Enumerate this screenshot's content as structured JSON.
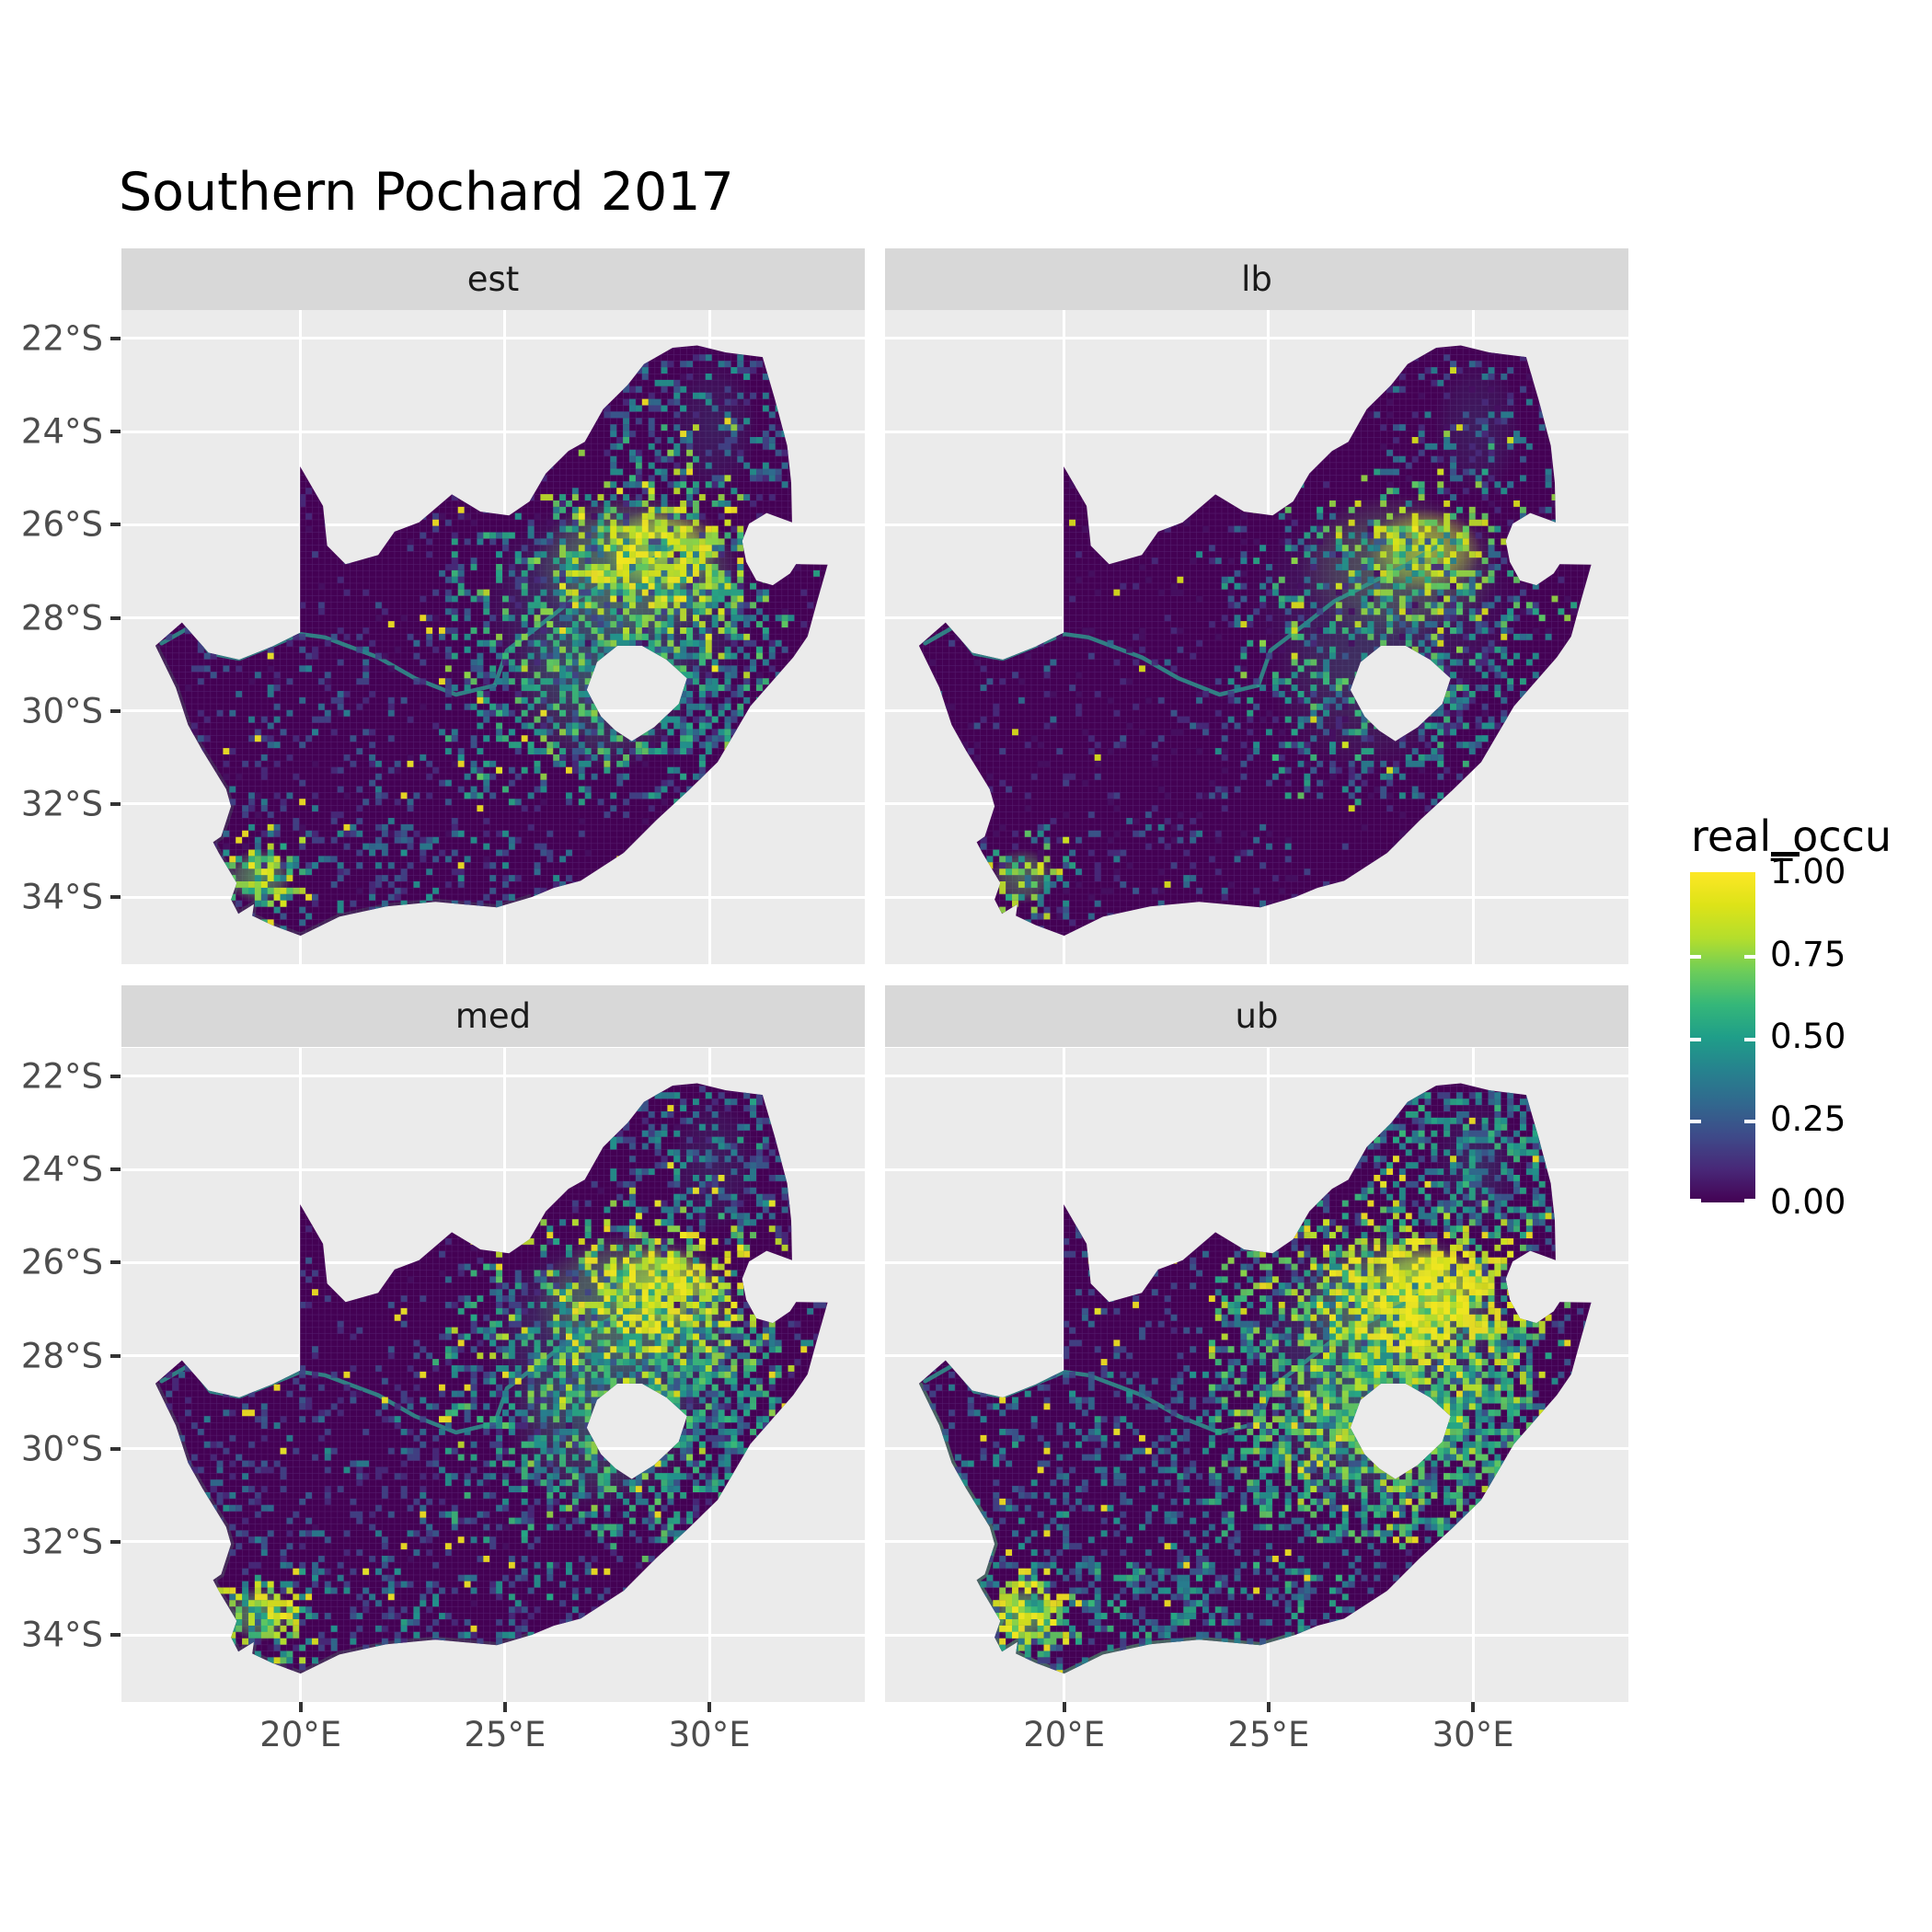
{
  "title": "Southern Pochard 2017",
  "chart_data": {
    "type": "heatmap",
    "title": "Southern Pochard 2017",
    "subtitle": "",
    "facets": [
      {
        "label": "est",
        "density": 1.0,
        "vshift": 0.0,
        "glow": 0.18,
        "hotspot_opacity": 1.0,
        "seed": 11
      },
      {
        "label": "lb",
        "density": 0.6,
        "vshift": -0.07,
        "glow": 0.0,
        "hotspot_opacity": 0.78,
        "seed": 22
      },
      {
        "label": "med",
        "density": 1.1,
        "vshift": 0.02,
        "glow": 0.22,
        "hotspot_opacity": 1.05,
        "seed": 33
      },
      {
        "label": "ub",
        "density": 1.55,
        "vshift": 0.1,
        "glow": 0.5,
        "hotspot_opacity": 1.2,
        "seed": 44
      }
    ],
    "x_axis": {
      "labels": [
        "20°E",
        "25°E",
        "30°E"
      ],
      "values": [
        20,
        25,
        30
      ]
    },
    "y_axis": {
      "labels": [
        "22°S",
        "24°S",
        "26°S",
        "28°S",
        "30°S",
        "32°S",
        "34°S"
      ],
      "values": [
        -22,
        -24,
        -26,
        -28,
        -30,
        -32,
        -34
      ]
    },
    "lon_range": [
      15.62,
      33.8
    ],
    "lat_range": [
      -35.44,
      -21.39
    ],
    "cell_size_deg": 0.155,
    "grid": "on",
    "legend": {
      "title": "real_occu",
      "labels": [
        "1.00",
        "0.75",
        "0.50",
        "0.25",
        "0.00"
      ],
      "values": [
        1.0,
        0.75,
        0.5,
        0.25,
        0.0
      ],
      "range": [
        0,
        1
      ],
      "colormap": "viridis",
      "position": "right"
    },
    "colors": {
      "panel_bg": "#EBEBEB",
      "strip_bg": "#D8D8D8",
      "grid_line": "#FFFFFF",
      "axis_text": "#4D4D4D",
      "tick_mark": "#333333",
      "strip_text": "#1A1A1A",
      "title_text": "#000000",
      "base_land": "#440154",
      "river": "#2D9E8F",
      "coast_glow": "#4AC16D",
      "cell_grid": "#7A5CA6",
      "viridis_stops": [
        [
          0,
          "#440154"
        ],
        [
          0.1,
          "#482878"
        ],
        [
          0.2,
          "#3E4A89"
        ],
        [
          0.3,
          "#31688E"
        ],
        [
          0.4,
          "#26828E"
        ],
        [
          0.5,
          "#1F9E89"
        ],
        [
          0.6,
          "#35B779"
        ],
        [
          0.7,
          "#6DCD59"
        ],
        [
          0.8,
          "#B4DE2C"
        ],
        [
          0.9,
          "#DDE318"
        ],
        [
          1,
          "#FDE725"
        ]
      ]
    },
    "map_outline": [
      [
        16.45,
        -28.6
      ],
      [
        17.1,
        -28.1
      ],
      [
        17.75,
        -28.75
      ],
      [
        18.5,
        -28.9
      ],
      [
        19.3,
        -28.62
      ],
      [
        19.99,
        -28.32
      ],
      [
        19.99,
        -24.75
      ],
      [
        20.55,
        -25.6
      ],
      [
        20.65,
        -26.45
      ],
      [
        21.1,
        -26.85
      ],
      [
        21.9,
        -26.65
      ],
      [
        22.3,
        -26.15
      ],
      [
        22.9,
        -25.95
      ],
      [
        23.7,
        -25.35
      ],
      [
        24.4,
        -25.72
      ],
      [
        25.1,
        -25.8
      ],
      [
        25.6,
        -25.5
      ],
      [
        26.0,
        -24.9
      ],
      [
        26.55,
        -24.42
      ],
      [
        26.95,
        -24.22
      ],
      [
        27.4,
        -23.52
      ],
      [
        28.0,
        -23.0
      ],
      [
        28.4,
        -22.55
      ],
      [
        29.1,
        -22.2
      ],
      [
        29.7,
        -22.15
      ],
      [
        30.4,
        -22.3
      ],
      [
        31.3,
        -22.4
      ],
      [
        31.6,
        -23.3
      ],
      [
        31.9,
        -24.3
      ],
      [
        32.0,
        -25.1
      ],
      [
        32.02,
        -25.95
      ],
      [
        31.4,
        -25.75
      ],
      [
        30.97,
        -25.98
      ],
      [
        30.8,
        -26.35
      ],
      [
        30.9,
        -26.8
      ],
      [
        31.15,
        -27.2
      ],
      [
        31.55,
        -27.3
      ],
      [
        31.97,
        -27.05
      ],
      [
        32.12,
        -26.85
      ],
      [
        32.89,
        -26.86
      ],
      [
        32.65,
        -27.6
      ],
      [
        32.4,
        -28.4
      ],
      [
        32.05,
        -28.85
      ],
      [
        31.0,
        -29.9
      ],
      [
        30.2,
        -31.1
      ],
      [
        29.5,
        -31.7
      ],
      [
        28.7,
        -32.35
      ],
      [
        27.9,
        -33.05
      ],
      [
        26.85,
        -33.65
      ],
      [
        26.2,
        -33.8
      ],
      [
        25.65,
        -34.0
      ],
      [
        24.8,
        -34.22
      ],
      [
        23.3,
        -34.1
      ],
      [
        22.1,
        -34.2
      ],
      [
        20.95,
        -34.42
      ],
      [
        20.0,
        -34.83
      ],
      [
        19.3,
        -34.6
      ],
      [
        18.82,
        -34.4
      ],
      [
        18.86,
        -34.15
      ],
      [
        18.48,
        -34.36
      ],
      [
        18.3,
        -34.05
      ],
      [
        18.44,
        -33.7
      ],
      [
        18.0,
        -33.05
      ],
      [
        17.86,
        -32.82
      ],
      [
        18.06,
        -32.7
      ],
      [
        18.3,
        -32.05
      ],
      [
        18.18,
        -31.68
      ],
      [
        17.6,
        -30.85
      ],
      [
        17.25,
        -30.3
      ],
      [
        16.95,
        -29.5
      ]
    ],
    "lesotho_hole": [
      [
        27.0,
        -29.55
      ],
      [
        27.25,
        -28.95
      ],
      [
        27.75,
        -28.6
      ],
      [
        28.35,
        -28.6
      ],
      [
        28.95,
        -28.9
      ],
      [
        29.45,
        -29.3
      ],
      [
        29.25,
        -29.85
      ],
      [
        28.65,
        -30.35
      ],
      [
        28.1,
        -30.65
      ],
      [
        27.7,
        -30.42
      ],
      [
        27.35,
        -30.12
      ]
    ],
    "coast_rim": [
      [
        16.45,
        -28.6
      ],
      [
        16.95,
        -29.5
      ],
      [
        17.25,
        -30.3
      ],
      [
        17.6,
        -30.85
      ],
      [
        18.18,
        -31.68
      ],
      [
        18.3,
        -32.05
      ],
      [
        18.06,
        -32.7
      ],
      [
        17.86,
        -32.82
      ],
      [
        18.0,
        -33.05
      ],
      [
        18.44,
        -33.7
      ],
      [
        18.3,
        -34.05
      ],
      [
        18.48,
        -34.36
      ],
      [
        18.86,
        -34.15
      ],
      [
        18.82,
        -34.4
      ],
      [
        19.3,
        -34.6
      ],
      [
        20.0,
        -34.83
      ],
      [
        20.95,
        -34.42
      ],
      [
        22.1,
        -34.2
      ],
      [
        23.3,
        -34.1
      ],
      [
        24.8,
        -34.22
      ],
      [
        25.65,
        -34.0
      ]
    ],
    "rivers": [
      {
        "name": "orange",
        "points": [
          [
            16.6,
            -28.55
          ],
          [
            17.3,
            -28.2
          ],
          [
            17.8,
            -28.77
          ],
          [
            18.5,
            -28.88
          ],
          [
            19.3,
            -28.6
          ],
          [
            20.0,
            -28.35
          ],
          [
            20.6,
            -28.42
          ],
          [
            21.2,
            -28.62
          ],
          [
            21.9,
            -28.85
          ],
          [
            22.8,
            -29.3
          ],
          [
            23.8,
            -29.65
          ],
          [
            24.75,
            -29.45
          ]
        ]
      },
      {
        "name": "vaal",
        "points": [
          [
            29.15,
            -26.45
          ],
          [
            28.4,
            -26.85
          ],
          [
            27.5,
            -27.25
          ],
          [
            26.6,
            -27.65
          ],
          [
            25.8,
            -28.2
          ],
          [
            25.05,
            -28.7
          ],
          [
            24.75,
            -29.45
          ]
        ]
      }
    ],
    "hotspots": [
      {
        "lon": 28.8,
        "lat": -26.55,
        "rx": 1.4,
        "ry": 0.9,
        "color": "#E8E419",
        "opacity": 0.9
      },
      {
        "lon": 28.2,
        "lat": -26.9,
        "rx": 2.5,
        "ry": 1.55,
        "color": "#7AD151",
        "opacity": 0.5
      },
      {
        "lon": 27.8,
        "lat": -27.8,
        "rx": 3.4,
        "ry": 2.5,
        "color": "#2A9D8F",
        "opacity": 0.28
      },
      {
        "lon": 27.35,
        "lat": -29.45,
        "rx": 2.3,
        "ry": 1.9,
        "color": "#35B779",
        "opacity": 0.32
      },
      {
        "lon": 19.0,
        "lat": -33.55,
        "rx": 0.8,
        "ry": 0.6,
        "color": "#5EC962",
        "opacity": 0.7
      },
      {
        "lon": 30.1,
        "lat": -23.9,
        "rx": 1.1,
        "ry": 1.5,
        "color": "#21918C",
        "opacity": 0.22
      }
    ],
    "speckle_clusters": [
      {
        "kind": "gauss",
        "lon": 28.8,
        "lat": -26.6,
        "slon": 1.0,
        "slat": 0.62,
        "n": 200,
        "v": [
          0.7,
          1.0
        ]
      },
      {
        "kind": "gauss",
        "lon": 28.1,
        "lat": -27.1,
        "slon": 1.9,
        "slat": 1.25,
        "n": 380,
        "v": [
          0.35,
          0.85
        ]
      },
      {
        "kind": "box",
        "box": [
          23.5,
          30.8,
          -31.9,
          -26.0
        ],
        "n": 600,
        "v": [
          0.12,
          0.6
        ]
      },
      {
        "kind": "box",
        "box": [
          28.6,
          31.6,
          -30.9,
          -27.3
        ],
        "n": 200,
        "v": [
          0.15,
          0.6
        ]
      },
      {
        "kind": "box",
        "box": [
          18.6,
          27.0,
          -34.6,
          -32.4
        ],
        "n": 150,
        "v": [
          0.12,
          0.5
        ]
      },
      {
        "kind": "box",
        "box": [
          16.8,
          23.5,
          -33.5,
          -28.3
        ],
        "n": 150,
        "v": [
          0.08,
          0.42
        ]
      },
      {
        "kind": "gauss",
        "lon": 19.05,
        "lat": -33.5,
        "slon": 0.5,
        "slat": 0.4,
        "n": 95,
        "v": [
          0.4,
          0.95
        ]
      },
      {
        "kind": "box",
        "box": [
          16.5,
          32.8,
          -34.7,
          -22.2
        ],
        "n": 85,
        "v": [
          0.93,
          1.0
        ]
      },
      {
        "kind": "box",
        "box": [
          16.5,
          32.8,
          -34.7,
          -22.2
        ],
        "n": 850,
        "v": [
          0.04,
          0.22
        ]
      },
      {
        "kind": "box",
        "box": [
          27.5,
          31.8,
          -25.2,
          -22.3
        ],
        "n": 190,
        "v": [
          0.12,
          0.5
        ]
      },
      {
        "kind": "gauss",
        "lon": 27.35,
        "lat": -29.55,
        "slon": 1.35,
        "slat": 1.0,
        "n": 240,
        "v": [
          0.3,
          0.75
        ]
      }
    ]
  }
}
